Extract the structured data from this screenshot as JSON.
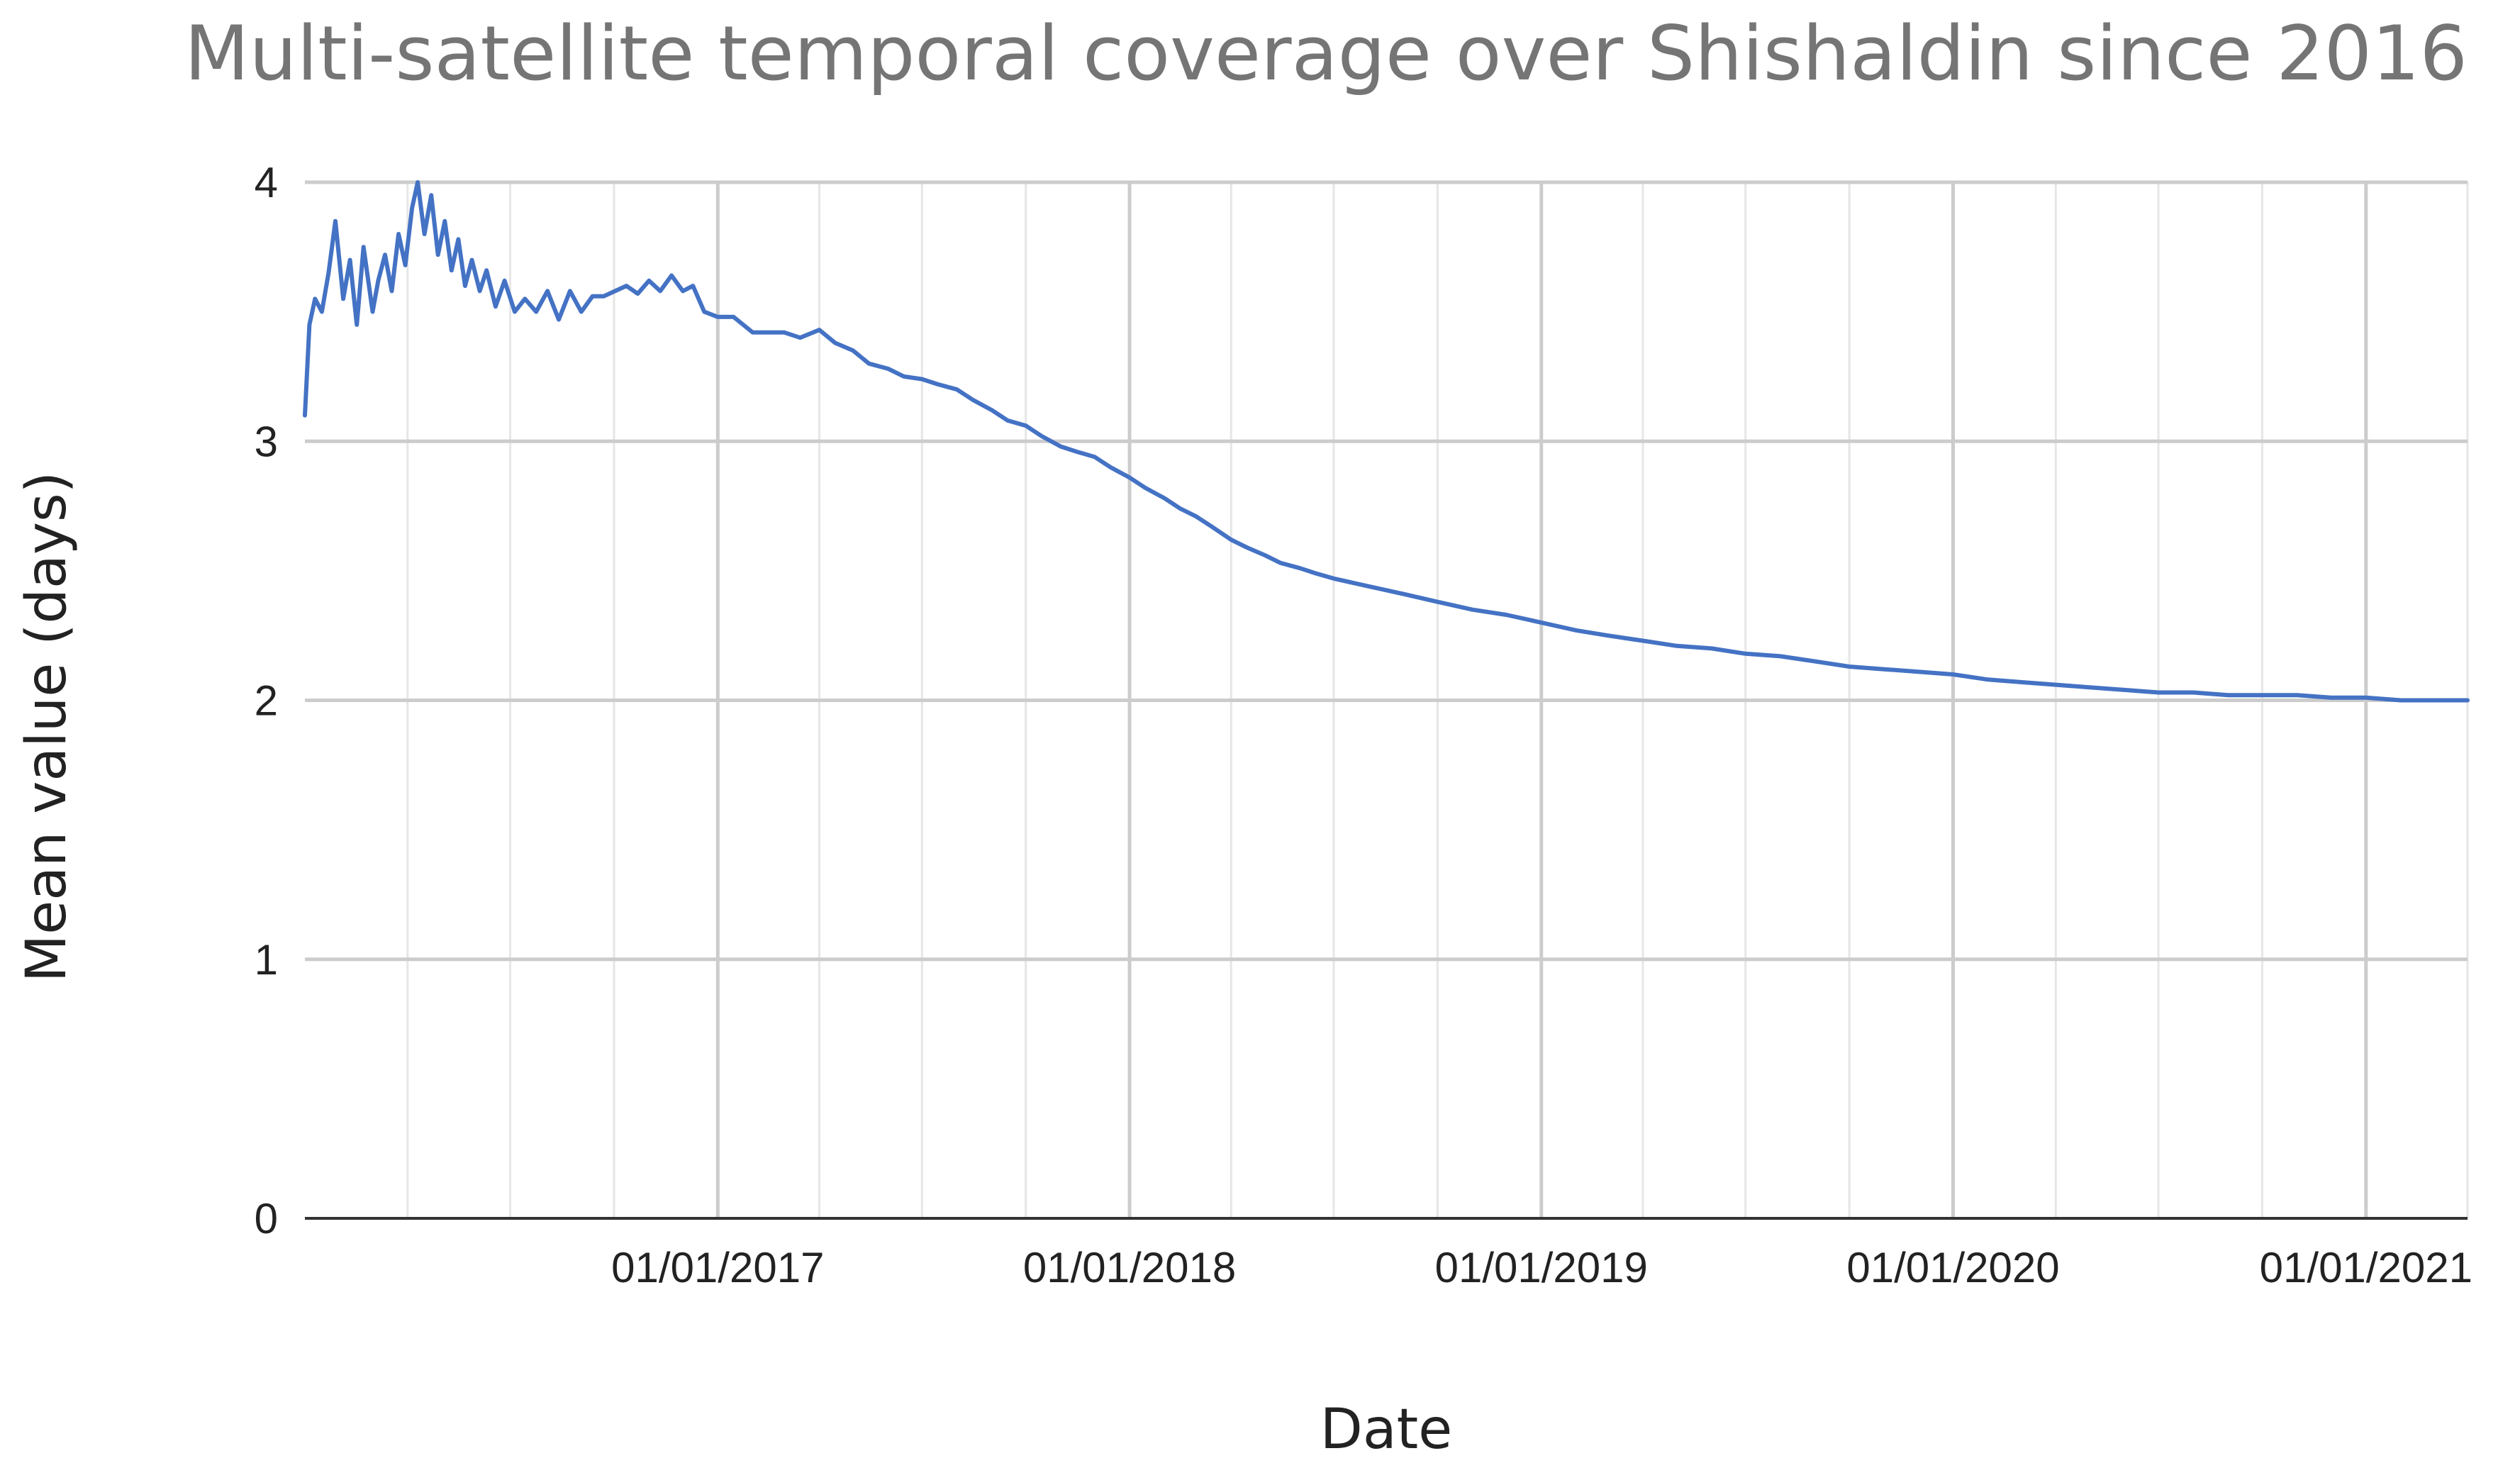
{
  "chart_data": {
    "type": "line",
    "title": "Multi-satellite temporal coverage over Shishaldin since 2016",
    "xlabel": "Date",
    "ylabel": "Mean value (days)",
    "x_range": [
      "2016-01-01",
      "2021-04-01"
    ],
    "ylim": [
      0,
      4
    ],
    "y_ticks": [
      0,
      1,
      2,
      3,
      4
    ],
    "y_tick_labels": [
      "0",
      "1",
      "2",
      "3",
      "4"
    ],
    "x_tick_labels": [
      {
        "date": "2017-01-01",
        "label": "01/01/2017"
      },
      {
        "date": "2018-01-01",
        "label": "01/01/2018"
      },
      {
        "date": "2019-01-01",
        "label": "01/01/2019"
      },
      {
        "date": "2020-01-01",
        "label": "01/01/2020"
      },
      {
        "date": "2021-01-01",
        "label": "01/01/2021"
      }
    ],
    "minor_gridlines_every_months": 3,
    "grid": true,
    "legend": "none",
    "line_color": "#4472c4",
    "series": [
      {
        "x": [
          "2016-01-01",
          "2016-01-05",
          "2016-01-10",
          "2016-01-16",
          "2016-01-22",
          "2016-01-28",
          "2016-02-04",
          "2016-02-10",
          "2016-02-16",
          "2016-02-22",
          "2016-03-01",
          "2016-03-06",
          "2016-03-12",
          "2016-03-18",
          "2016-03-24",
          "2016-03-30",
          "2016-04-05",
          "2016-04-10",
          "2016-04-16",
          "2016-04-22",
          "2016-04-28",
          "2016-05-04",
          "2016-05-10",
          "2016-05-16",
          "2016-05-22",
          "2016-05-28",
          "2016-06-04",
          "2016-06-10",
          "2016-06-18",
          "2016-06-26",
          "2016-07-05",
          "2016-07-14",
          "2016-07-24",
          "2016-08-03",
          "2016-08-13",
          "2016-08-23",
          "2016-09-02",
          "2016-09-12",
          "2016-09-22",
          "2016-10-02",
          "2016-10-12",
          "2016-10-22",
          "2016-11-01",
          "2016-11-11",
          "2016-11-21",
          "2016-12-01",
          "2016-12-10",
          "2016-12-20",
          "2017-01-01",
          "2017-01-15",
          "2017-02-01",
          "2017-02-15",
          "2017-03-01",
          "2017-03-15",
          "2017-04-01",
          "2017-04-15",
          "2017-05-01",
          "2017-05-15",
          "2017-06-01",
          "2017-06-15",
          "2017-07-01",
          "2017-07-15",
          "2017-08-01",
          "2017-08-15",
          "2017-09-01",
          "2017-09-15",
          "2017-10-01",
          "2017-10-15",
          "2017-11-01",
          "2017-11-15",
          "2017-12-01",
          "2017-12-15",
          "2018-01-01",
          "2018-01-15",
          "2018-02-01",
          "2018-02-15",
          "2018-03-01",
          "2018-03-15",
          "2018-04-01",
          "2018-04-15",
          "2018-05-01",
          "2018-05-15",
          "2018-06-01",
          "2018-06-15",
          "2018-07-01",
          "2018-08-01",
          "2018-09-01",
          "2018-10-01",
          "2018-11-01",
          "2018-12-01",
          "2019-01-01",
          "2019-02-01",
          "2019-03-01",
          "2019-04-01",
          "2019-05-01",
          "2019-06-01",
          "2019-07-01",
          "2019-08-01",
          "2019-09-01",
          "2019-10-01",
          "2019-11-01",
          "2019-12-01",
          "2020-01-01",
          "2020-02-01",
          "2020-03-01",
          "2020-04-01",
          "2020-05-01",
          "2020-06-01",
          "2020-07-01",
          "2020-08-01",
          "2020-09-01",
          "2020-10-01",
          "2020-11-01",
          "2020-12-01",
          "2021-01-01",
          "2021-02-01",
          "2021-03-01",
          "2021-04-01"
        ],
        "y": [
          3.1,
          3.45,
          3.55,
          3.5,
          3.65,
          3.85,
          3.55,
          3.7,
          3.45,
          3.75,
          3.5,
          3.62,
          3.72,
          3.58,
          3.8,
          3.68,
          3.9,
          4.0,
          3.8,
          3.95,
          3.72,
          3.85,
          3.66,
          3.78,
          3.6,
          3.7,
          3.58,
          3.66,
          3.52,
          3.62,
          3.5,
          3.55,
          3.5,
          3.58,
          3.47,
          3.58,
          3.5,
          3.56,
          3.56,
          3.58,
          3.6,
          3.57,
          3.62,
          3.58,
          3.64,
          3.58,
          3.6,
          3.5,
          3.48,
          3.48,
          3.42,
          3.42,
          3.42,
          3.4,
          3.43,
          3.38,
          3.35,
          3.3,
          3.28,
          3.25,
          3.24,
          3.22,
          3.2,
          3.16,
          3.12,
          3.08,
          3.06,
          3.02,
          2.98,
          2.96,
          2.94,
          2.9,
          2.86,
          2.82,
          2.78,
          2.74,
          2.71,
          2.67,
          2.62,
          2.59,
          2.56,
          2.53,
          2.51,
          2.49,
          2.47,
          2.44,
          2.41,
          2.38,
          2.35,
          2.33,
          2.3,
          2.27,
          2.25,
          2.23,
          2.21,
          2.2,
          2.18,
          2.17,
          2.15,
          2.13,
          2.12,
          2.11,
          2.1,
          2.08,
          2.07,
          2.06,
          2.05,
          2.04,
          2.03,
          2.03,
          2.02,
          2.02,
          2.02,
          2.01,
          2.01,
          2.0,
          2.0,
          2.0
        ]
      }
    ]
  }
}
